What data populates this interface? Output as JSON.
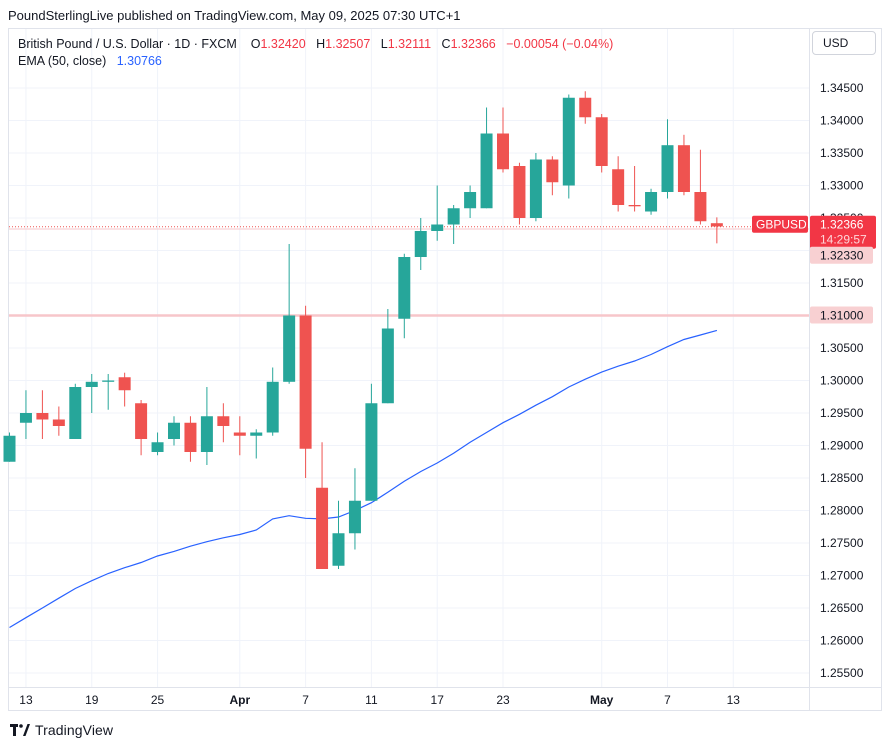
{
  "header": {
    "publisher": "PoundSterlingLive published on TradingView.com, May 09, 2025 07:30 UTC+1"
  },
  "legend": {
    "symbol": "British Pound / U.S. Dollar · 1D · FXCM",
    "o_label": "O",
    "o_value": "1.32420",
    "h_label": "H",
    "h_value": "1.32507",
    "l_label": "L",
    "l_value": "1.32111",
    "c_label": "C",
    "c_value": "1.32366",
    "change": "−0.00054 (−0.04%)",
    "ema_label": "EMA (50, close)",
    "ema_value": "1.30766"
  },
  "currency_button": "USD",
  "footer": {
    "brand": "TradingView",
    "logo_icon": "tradingview-logo-icon"
  },
  "colors": {
    "up": "#26a69a",
    "down": "#ef5350",
    "ema": "#2962ff",
    "price_label_bg": "#f23645",
    "level_label_bg": "#f8d0d2",
    "level_line": "#f7c6ca"
  },
  "chart_data": {
    "type": "candlestick",
    "title": "British Pound / U.S. Dollar · 1D · FXCM",
    "ylim": [
      1.2525,
      1.35
    ],
    "y_ticks": [
      "1.25500",
      "1.26000",
      "1.26500",
      "1.27000",
      "1.27500",
      "1.28000",
      "1.28500",
      "1.29000",
      "1.29500",
      "1.30000",
      "1.30500",
      "1.31000",
      "1.31500",
      "1.32000",
      "1.32500",
      "1.33000",
      "1.33500",
      "1.34000",
      "1.34500"
    ],
    "x_ticks": [
      {
        "label": "13",
        "i": 1
      },
      {
        "label": "19",
        "i": 5
      },
      {
        "label": "25",
        "i": 9
      },
      {
        "label": "Apr",
        "i": 14
      },
      {
        "label": "7",
        "i": 18
      },
      {
        "label": "11",
        "i": 22
      },
      {
        "label": "17",
        "i": 26
      },
      {
        "label": "23",
        "i": 30
      },
      {
        "label": "May",
        "i": 36
      },
      {
        "label": "7",
        "i": 40
      },
      {
        "label": "13",
        "i": 44
      }
    ],
    "candles": [
      {
        "o": 1.2875,
        "h": 1.292,
        "l": 1.2875,
        "c": 1.2915
      },
      {
        "o": 1.2935,
        "h": 1.2985,
        "l": 1.291,
        "c": 1.295
      },
      {
        "o": 1.295,
        "h": 1.2985,
        "l": 1.291,
        "c": 1.294
      },
      {
        "o": 1.294,
        "h": 1.296,
        "l": 1.2915,
        "c": 1.293
      },
      {
        "o": 1.291,
        "h": 1.2995,
        "l": 1.291,
        "c": 1.299
      },
      {
        "o": 1.299,
        "h": 1.301,
        "l": 1.295,
        "c": 1.2998
      },
      {
        "o": 1.2998,
        "h": 1.301,
        "l": 1.2955,
        "c": 1.3
      },
      {
        "o": 1.3005,
        "h": 1.3012,
        "l": 1.296,
        "c": 1.2985
      },
      {
        "o": 1.2965,
        "h": 1.297,
        "l": 1.2885,
        "c": 1.291
      },
      {
        "o": 1.289,
        "h": 1.292,
        "l": 1.2885,
        "c": 1.2905
      },
      {
        "o": 1.291,
        "h": 1.2945,
        "l": 1.29,
        "c": 1.2935
      },
      {
        "o": 1.2935,
        "h": 1.2945,
        "l": 1.2875,
        "c": 1.289
      },
      {
        "o": 1.289,
        "h": 1.299,
        "l": 1.287,
        "c": 1.2945
      },
      {
        "o": 1.2945,
        "h": 1.2965,
        "l": 1.2905,
        "c": 1.293
      },
      {
        "o": 1.292,
        "h": 1.2945,
        "l": 1.2885,
        "c": 1.2915
      },
      {
        "o": 1.2915,
        "h": 1.2925,
        "l": 1.288,
        "c": 1.292
      },
      {
        "o": 1.292,
        "h": 1.302,
        "l": 1.2915,
        "c": 1.2998
      },
      {
        "o": 1.2998,
        "h": 1.321,
        "l": 1.2995,
        "c": 1.31
      },
      {
        "o": 1.31,
        "h": 1.3115,
        "l": 1.285,
        "c": 1.2895
      },
      {
        "o": 1.2835,
        "h": 1.2905,
        "l": 1.271,
        "c": 1.271
      },
      {
        "o": 1.2715,
        "h": 1.2815,
        "l": 1.271,
        "c": 1.2765
      },
      {
        "o": 1.2765,
        "h": 1.2865,
        "l": 1.274,
        "c": 1.2815
      },
      {
        "o": 1.2815,
        "h": 1.2995,
        "l": 1.2815,
        "c": 1.2965
      },
      {
        "o": 1.2965,
        "h": 1.311,
        "l": 1.2965,
        "c": 1.308
      },
      {
        "o": 1.3095,
        "h": 1.3195,
        "l": 1.3065,
        "c": 1.319
      },
      {
        "o": 1.319,
        "h": 1.325,
        "l": 1.317,
        "c": 1.323
      },
      {
        "o": 1.323,
        "h": 1.33,
        "l": 1.3215,
        "c": 1.324
      },
      {
        "o": 1.324,
        "h": 1.327,
        "l": 1.321,
        "c": 1.3265
      },
      {
        "o": 1.3265,
        "h": 1.33,
        "l": 1.325,
        "c": 1.329
      },
      {
        "o": 1.3265,
        "h": 1.342,
        "l": 1.3265,
        "c": 1.338
      },
      {
        "o": 1.338,
        "h": 1.342,
        "l": 1.332,
        "c": 1.3325
      },
      {
        "o": 1.333,
        "h": 1.3335,
        "l": 1.324,
        "c": 1.325
      },
      {
        "o": 1.325,
        "h": 1.335,
        "l": 1.3245,
        "c": 1.334
      },
      {
        "o": 1.334,
        "h": 1.3345,
        "l": 1.3285,
        "c": 1.3305
      },
      {
        "o": 1.33,
        "h": 1.344,
        "l": 1.328,
        "c": 1.3435
      },
      {
        "o": 1.3435,
        "h": 1.3445,
        "l": 1.3395,
        "c": 1.3405
      },
      {
        "o": 1.3405,
        "h": 1.341,
        "l": 1.332,
        "c": 1.333
      },
      {
        "o": 1.3325,
        "h": 1.3345,
        "l": 1.326,
        "c": 1.327
      },
      {
        "o": 1.327,
        "h": 1.333,
        "l": 1.326,
        "c": 1.3268
      },
      {
        "o": 1.326,
        "h": 1.3295,
        "l": 1.3255,
        "c": 1.329
      },
      {
        "o": 1.329,
        "h": 1.3402,
        "l": 1.328,
        "c": 1.3362
      },
      {
        "o": 1.3362,
        "h": 1.3378,
        "l": 1.3285,
        "c": 1.329
      },
      {
        "o": 1.329,
        "h": 1.3355,
        "l": 1.324,
        "c": 1.3245
      },
      {
        "o": 1.3242,
        "h": 1.3251,
        "l": 1.3211,
        "c": 1.3237
      }
    ],
    "ema": [
      1.262,
      1.2635,
      1.265,
      1.2665,
      1.268,
      1.2692,
      1.2703,
      1.2712,
      1.272,
      1.273,
      1.2737,
      1.2745,
      1.2752,
      1.2758,
      1.2763,
      1.277,
      1.2787,
      1.2792,
      1.2788,
      1.2787,
      1.279,
      1.28,
      1.2812,
      1.2828,
      1.2845,
      1.286,
      1.2873,
      1.2888,
      1.2905,
      1.292,
      1.2935,
      1.2948,
      1.2962,
      1.2975,
      1.299,
      1.3002,
      1.3013,
      1.3022,
      1.303,
      1.304,
      1.3052,
      1.3063,
      1.307,
      1.3077
    ],
    "last_price": {
      "value": 1.32366,
      "label": "GBPUSD",
      "price": "1.32366",
      "countdown": "14:29:57"
    },
    "levels": [
      {
        "value": 1.3233,
        "label": "1.32330"
      },
      {
        "value": 1.31,
        "label": "1.31000"
      }
    ]
  }
}
